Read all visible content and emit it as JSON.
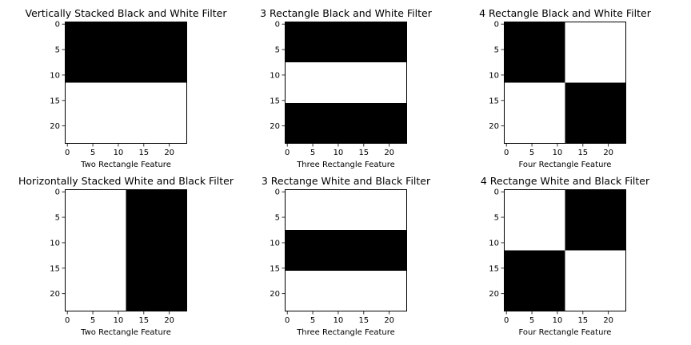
{
  "chart_data": [
    {
      "type": "heatmap",
      "title": "Vertically Stacked Black and White Filter",
      "xlabel": "Two Rectangle Feature",
      "ylabel": "",
      "xticks": [
        0,
        5,
        10,
        15,
        20
      ],
      "yticks": [
        0,
        5,
        10,
        15,
        20
      ],
      "xlim": [
        -0.5,
        23.5
      ],
      "ylim": [
        23.5,
        -0.5
      ],
      "colormap": "gray",
      "regions": [
        {
          "value": 0,
          "rows": [
            0,
            11
          ],
          "cols": [
            0,
            23
          ]
        },
        {
          "value": 1,
          "rows": [
            12,
            23
          ],
          "cols": [
            0,
            23
          ]
        }
      ]
    },
    {
      "type": "heatmap",
      "title": "3 Rectangle Black and White Filter",
      "xlabel": "Three Rectangle Feature",
      "ylabel": "",
      "xticks": [
        0,
        5,
        10,
        15,
        20
      ],
      "yticks": [
        0,
        5,
        10,
        15,
        20
      ],
      "xlim": [
        -0.5,
        23.5
      ],
      "ylim": [
        23.5,
        -0.5
      ],
      "colormap": "gray",
      "regions": [
        {
          "value": 0,
          "rows": [
            0,
            7
          ],
          "cols": [
            0,
            23
          ]
        },
        {
          "value": 1,
          "rows": [
            8,
            15
          ],
          "cols": [
            0,
            23
          ]
        },
        {
          "value": 0,
          "rows": [
            16,
            23
          ],
          "cols": [
            0,
            23
          ]
        }
      ]
    },
    {
      "type": "heatmap",
      "title": "4 Rectangle Black and White Filter",
      "xlabel": "Four Rectangle Feature",
      "ylabel": "",
      "xticks": [
        0,
        5,
        10,
        15,
        20
      ],
      "yticks": [
        0,
        5,
        10,
        15,
        20
      ],
      "xlim": [
        -0.5,
        23.5
      ],
      "ylim": [
        23.5,
        -0.5
      ],
      "colormap": "gray",
      "regions": [
        {
          "value": 0,
          "rows": [
            0,
            11
          ],
          "cols": [
            0,
            11
          ]
        },
        {
          "value": 1,
          "rows": [
            0,
            11
          ],
          "cols": [
            12,
            23
          ]
        },
        {
          "value": 1,
          "rows": [
            12,
            23
          ],
          "cols": [
            0,
            11
          ]
        },
        {
          "value": 0,
          "rows": [
            12,
            23
          ],
          "cols": [
            12,
            23
          ]
        }
      ]
    },
    {
      "type": "heatmap",
      "title": "Horizontally Stacked White and Black Filter",
      "xlabel": "Two Rectangle Feature",
      "ylabel": "",
      "xticks": [
        0,
        5,
        10,
        15,
        20
      ],
      "yticks": [
        0,
        5,
        10,
        15,
        20
      ],
      "xlim": [
        -0.5,
        23.5
      ],
      "ylim": [
        23.5,
        -0.5
      ],
      "colormap": "gray",
      "regions": [
        {
          "value": 1,
          "rows": [
            0,
            23
          ],
          "cols": [
            0,
            11
          ]
        },
        {
          "value": 0,
          "rows": [
            0,
            23
          ],
          "cols": [
            12,
            23
          ]
        }
      ]
    },
    {
      "type": "heatmap",
      "title": "3 Rectange White and Black Filter",
      "xlabel": "Three Rectangle Feature",
      "ylabel": "",
      "xticks": [
        0,
        5,
        10,
        15,
        20
      ],
      "yticks": [
        0,
        5,
        10,
        15,
        20
      ],
      "xlim": [
        -0.5,
        23.5
      ],
      "ylim": [
        23.5,
        -0.5
      ],
      "colormap": "gray",
      "regions": [
        {
          "value": 1,
          "rows": [
            0,
            7
          ],
          "cols": [
            0,
            23
          ]
        },
        {
          "value": 0,
          "rows": [
            8,
            15
          ],
          "cols": [
            0,
            23
          ]
        },
        {
          "value": 1,
          "rows": [
            16,
            23
          ],
          "cols": [
            0,
            23
          ]
        }
      ]
    },
    {
      "type": "heatmap",
      "title": "4 Rectange White and Black Filter",
      "xlabel": "Four Rectangle Feature",
      "ylabel": "",
      "xticks": [
        0,
        5,
        10,
        15,
        20
      ],
      "yticks": [
        0,
        5,
        10,
        15,
        20
      ],
      "xlim": [
        -0.5,
        23.5
      ],
      "ylim": [
        23.5,
        -0.5
      ],
      "colormap": "gray",
      "regions": [
        {
          "value": 1,
          "rows": [
            0,
            11
          ],
          "cols": [
            0,
            11
          ]
        },
        {
          "value": 0,
          "rows": [
            0,
            11
          ],
          "cols": [
            12,
            23
          ]
        },
        {
          "value": 0,
          "rows": [
            12,
            23
          ],
          "cols": [
            0,
            11
          ]
        },
        {
          "value": 1,
          "rows": [
            12,
            23
          ],
          "cols": [
            12,
            23
          ]
        }
      ]
    }
  ],
  "colors": {
    "low": "#000000",
    "high": "#ffffff",
    "axis": "#000000"
  }
}
